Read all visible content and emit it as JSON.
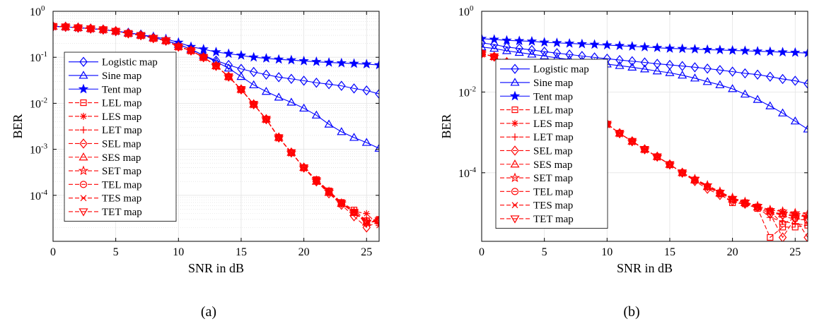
{
  "chart_data": [
    {
      "panel_label": "(a)",
      "type": "line",
      "xlabel": "SNR in dB",
      "ylabel": "BER",
      "y_scale": "log",
      "xlim": [
        0,
        26
      ],
      "ylim": [
        1e-05,
        1
      ],
      "x_ticks": [
        0,
        5,
        10,
        15,
        20,
        25
      ],
      "y_ticks": [
        {
          "value": 1,
          "base": "10",
          "exp": "0"
        },
        {
          "value": 0.1,
          "base": "10",
          "exp": "-1"
        },
        {
          "value": 0.01,
          "base": "10",
          "exp": "-2"
        },
        {
          "value": 0.001,
          "base": "10",
          "exp": "-3"
        },
        {
          "value": 0.0001,
          "base": "10",
          "exp": "-4"
        }
      ],
      "grid": true,
      "minor_grid": true,
      "legend_position": "center-left",
      "x": [
        0,
        1,
        2,
        3,
        4,
        5,
        6,
        7,
        8,
        9,
        10,
        11,
        12,
        13,
        14,
        15,
        16,
        17,
        18,
        19,
        20,
        21,
        22,
        23,
        24,
        25,
        26
      ],
      "series": [
        {
          "name": "Logistic map",
          "color": "#0000ff",
          "dash": "solid",
          "marker": "diamond",
          "values": [
            0.47,
            0.46,
            0.44,
            0.42,
            0.4,
            0.37,
            0.34,
            0.31,
            0.27,
            0.23,
            0.19,
            0.15,
            0.11,
            0.085,
            0.068,
            0.056,
            0.048,
            0.042,
            0.037,
            0.034,
            0.031,
            0.028,
            0.026,
            0.024,
            0.021,
            0.019,
            0.016
          ]
        },
        {
          "name": "Sine map",
          "color": "#0000ff",
          "dash": "solid",
          "marker": "triangle",
          "values": [
            0.47,
            0.46,
            0.44,
            0.42,
            0.4,
            0.37,
            0.34,
            0.31,
            0.27,
            0.23,
            0.19,
            0.15,
            0.11,
            0.08,
            0.058,
            0.038,
            0.025,
            0.018,
            0.0135,
            0.0105,
            0.0078,
            0.0055,
            0.0035,
            0.0024,
            0.0018,
            0.0014,
            0.00105
          ]
        },
        {
          "name": "Tent map",
          "color": "#0000ff",
          "dash": "solid",
          "marker": "star",
          "values": [
            0.47,
            0.46,
            0.44,
            0.42,
            0.4,
            0.37,
            0.34,
            0.31,
            0.28,
            0.25,
            0.21,
            0.17,
            0.15,
            0.13,
            0.12,
            0.11,
            0.1,
            0.095,
            0.09,
            0.087,
            0.083,
            0.08,
            0.077,
            0.075,
            0.073,
            0.071,
            0.068
          ]
        },
        {
          "name": "LEL map",
          "color": "#ff0000",
          "dash": "dashed",
          "marker": "square",
          "values": [
            0.47,
            0.46,
            0.44,
            0.42,
            0.4,
            0.37,
            0.33,
            0.3,
            0.26,
            0.23,
            0.17,
            0.14,
            0.1,
            0.065,
            0.038,
            0.02,
            0.0095,
            0.0045,
            0.0018,
            0.00085,
            0.0004,
            0.00022,
            0.000125,
            7e-05,
            4.8e-05,
            2.8e-05,
            3e-05
          ]
        },
        {
          "name": "LES map",
          "color": "#ff0000",
          "dash": "dashed",
          "marker": "asterisk",
          "values": [
            0.47,
            0.46,
            0.44,
            0.42,
            0.4,
            0.37,
            0.33,
            0.3,
            0.26,
            0.23,
            0.17,
            0.14,
            0.1,
            0.065,
            0.038,
            0.02,
            0.0095,
            0.0045,
            0.0018,
            0.00085,
            0.0004,
            0.00021,
            0.00012,
            6.8e-05,
            4.5e-05,
            4e-05,
            2.2e-05
          ]
        },
        {
          "name": "LET map",
          "color": "#ff0000",
          "dash": "dashed",
          "marker": "plus",
          "values": [
            0.47,
            0.46,
            0.44,
            0.42,
            0.4,
            0.37,
            0.33,
            0.3,
            0.26,
            0.23,
            0.17,
            0.14,
            0.1,
            0.065,
            0.038,
            0.02,
            0.0095,
            0.0045,
            0.0018,
            0.00085,
            0.0004,
            0.0002,
            0.000115,
            6.5e-05,
            4.4e-05,
            2.5e-05,
            2.9e-05
          ]
        },
        {
          "name": "SEL map",
          "color": "#ff0000",
          "dash": "dashed",
          "marker": "diamond",
          "values": [
            0.47,
            0.46,
            0.44,
            0.42,
            0.4,
            0.37,
            0.33,
            0.3,
            0.26,
            0.23,
            0.17,
            0.14,
            0.1,
            0.065,
            0.038,
            0.02,
            0.0095,
            0.0045,
            0.0018,
            0.00085,
            0.0004,
            0.0002,
            0.00011,
            6.2e-05,
            3.5e-05,
            2e-05,
            2.8e-05
          ]
        },
        {
          "name": "SES map",
          "color": "#ff0000",
          "dash": "dashed",
          "marker": "triangle",
          "values": [
            0.47,
            0.46,
            0.44,
            0.42,
            0.4,
            0.37,
            0.33,
            0.3,
            0.26,
            0.23,
            0.17,
            0.14,
            0.1,
            0.065,
            0.038,
            0.02,
            0.0095,
            0.0045,
            0.0018,
            0.00085,
            0.0004,
            0.0002,
            0.000115,
            6.6e-05,
            4.2e-05,
            2.6e-05,
            2.8e-05
          ]
        },
        {
          "name": "SET map",
          "color": "#ff0000",
          "dash": "dashed",
          "marker": "pentagram",
          "values": [
            0.47,
            0.46,
            0.44,
            0.42,
            0.4,
            0.37,
            0.33,
            0.3,
            0.26,
            0.23,
            0.17,
            0.14,
            0.1,
            0.065,
            0.038,
            0.02,
            0.0095,
            0.0045,
            0.0018,
            0.00085,
            0.0004,
            0.00021,
            0.00012,
            6.7e-05,
            4.3e-05,
            2.7e-05,
            2.8e-05
          ]
        },
        {
          "name": "TEL map",
          "color": "#ff0000",
          "dash": "dashed",
          "marker": "circle",
          "values": [
            0.47,
            0.46,
            0.44,
            0.42,
            0.4,
            0.37,
            0.33,
            0.3,
            0.26,
            0.23,
            0.17,
            0.14,
            0.1,
            0.065,
            0.038,
            0.02,
            0.0095,
            0.0045,
            0.0018,
            0.00085,
            0.0004,
            0.00021,
            0.00012,
            6.7e-05,
            4.2e-05,
            2.8e-05,
            2.9e-05
          ]
        },
        {
          "name": "TES map",
          "color": "#ff0000",
          "dash": "dashed",
          "marker": "x",
          "values": [
            0.47,
            0.46,
            0.44,
            0.42,
            0.4,
            0.37,
            0.33,
            0.3,
            0.26,
            0.23,
            0.17,
            0.14,
            0.1,
            0.065,
            0.038,
            0.02,
            0.0095,
            0.0045,
            0.0018,
            0.00085,
            0.0004,
            0.00021,
            0.00012,
            6.7e-05,
            4.3e-05,
            2.6e-05,
            2.7e-05
          ]
        },
        {
          "name": "TET map",
          "color": "#ff0000",
          "dash": "dashed",
          "marker": "triangle-down",
          "values": [
            0.47,
            0.46,
            0.44,
            0.42,
            0.4,
            0.37,
            0.33,
            0.3,
            0.26,
            0.23,
            0.17,
            0.14,
            0.1,
            0.065,
            0.038,
            0.02,
            0.0095,
            0.0045,
            0.0018,
            0.00085,
            0.0004,
            0.00021,
            0.00012,
            6.7e-05,
            4.3e-05,
            2.5e-05,
            2.8e-05
          ]
        }
      ]
    },
    {
      "panel_label": "(b)",
      "type": "line",
      "xlabel": "SNR in dB",
      "ylabel": "BER",
      "y_scale": "log",
      "xlim": [
        0,
        26
      ],
      "ylim": [
        2e-06,
        1
      ],
      "x_ticks": [
        0,
        5,
        10,
        15,
        20,
        25
      ],
      "y_ticks": [
        {
          "value": 1,
          "base": "10",
          "exp": "0"
        },
        {
          "value": 0.01,
          "base": "10",
          "exp": "-2"
        },
        {
          "value": 0.0001,
          "base": "10",
          "exp": "-4"
        }
      ],
      "grid": true,
      "minor_grid": false,
      "legend_position": "center-left",
      "x": [
        0,
        1,
        2,
        3,
        4,
        5,
        6,
        7,
        8,
        9,
        10,
        11,
        12,
        13,
        14,
        15,
        16,
        17,
        18,
        19,
        20,
        21,
        22,
        23,
        24,
        25,
        26
      ],
      "series": [
        {
          "name": "Logistic map",
          "color": "#0000ff",
          "dash": "solid",
          "marker": "diamond",
          "values": [
            0.165,
            0.15,
            0.13,
            0.12,
            0.11,
            0.1,
            0.092,
            0.085,
            0.078,
            0.072,
            0.067,
            0.062,
            0.058,
            0.054,
            0.05,
            0.047,
            0.044,
            0.041,
            0.038,
            0.035,
            0.032,
            0.029,
            0.027,
            0.024,
            0.021,
            0.019,
            0.016
          ]
        },
        {
          "name": "Sine map",
          "color": "#0000ff",
          "dash": "solid",
          "marker": "triangle",
          "values": [
            0.13,
            0.12,
            0.105,
            0.095,
            0.086,
            0.078,
            0.07,
            0.064,
            0.058,
            0.053,
            0.049,
            0.045,
            0.041,
            0.037,
            0.033,
            0.03,
            0.026,
            0.022,
            0.018,
            0.015,
            0.012,
            0.0088,
            0.0065,
            0.0045,
            0.003,
            0.0019,
            0.0012
          ]
        },
        {
          "name": "Tent map",
          "color": "#0000ff",
          "dash": "solid",
          "marker": "star",
          "values": [
            0.21,
            0.2,
            0.19,
            0.185,
            0.18,
            0.17,
            0.165,
            0.16,
            0.155,
            0.15,
            0.145,
            0.14,
            0.135,
            0.13,
            0.125,
            0.12,
            0.118,
            0.115,
            0.112,
            0.11,
            0.107,
            0.105,
            0.102,
            0.1,
            0.097,
            0.095,
            0.092
          ]
        },
        {
          "name": "LEL map",
          "color": "#ff0000",
          "dash": "dashed",
          "marker": "square",
          "values": [
            0.09,
            0.075,
            0.055,
            0.04,
            0.028,
            0.018,
            0.011,
            0.0068,
            0.0042,
            0.0026,
            0.0016,
            0.00095,
            0.0006,
            0.00038,
            0.00025,
            0.00016,
            0.0001,
            6.5e-05,
            4.5e-05,
            3e-05,
            1.8e-05,
            1.7e-05,
            1.3e-05,
            2.5e-06,
            4.5e-06,
            4.5e-06,
            5e-06
          ]
        },
        {
          "name": "LES map",
          "color": "#ff0000",
          "dash": "dashed",
          "marker": "asterisk",
          "values": [
            0.09,
            0.075,
            0.055,
            0.04,
            0.028,
            0.018,
            0.011,
            0.0068,
            0.0042,
            0.0026,
            0.0016,
            0.00095,
            0.0006,
            0.00038,
            0.00025,
            0.00016,
            0.0001,
            6.8e-05,
            4.7e-05,
            3.3e-05,
            2.3e-05,
            1.9e-05,
            1.5e-05,
            1.2e-05,
            1.1e-05,
            9.5e-06,
            8.5e-06
          ]
        },
        {
          "name": "LET map",
          "color": "#ff0000",
          "dash": "dashed",
          "marker": "plus",
          "values": [
            0.09,
            0.075,
            0.055,
            0.04,
            0.028,
            0.018,
            0.011,
            0.0068,
            0.0042,
            0.0026,
            0.0016,
            0.00095,
            0.0006,
            0.00038,
            0.00025,
            0.00016,
            0.0001,
            6.6e-05,
            4.6e-05,
            3.2e-05,
            2.2e-05,
            1.8e-05,
            1.4e-05,
            7.8e-06,
            6.2e-06,
            5.5e-06,
            5e-06
          ]
        },
        {
          "name": "SEL map",
          "color": "#ff0000",
          "dash": "dashed",
          "marker": "diamond",
          "values": [
            0.09,
            0.075,
            0.055,
            0.04,
            0.028,
            0.018,
            0.011,
            0.0068,
            0.0042,
            0.0026,
            0.0016,
            0.00095,
            0.0006,
            0.00038,
            0.00025,
            0.00016,
            0.0001,
            6.2e-05,
            4e-05,
            2.8e-05,
            2e-05,
            1.7e-05,
            1.4e-05,
            9.5e-06,
            2.5e-06,
            7.5e-06,
            2.5e-06
          ]
        },
        {
          "name": "SES map",
          "color": "#ff0000",
          "dash": "dashed",
          "marker": "triangle",
          "values": [
            0.09,
            0.075,
            0.055,
            0.04,
            0.028,
            0.018,
            0.011,
            0.0068,
            0.0042,
            0.0026,
            0.0016,
            0.00095,
            0.0006,
            0.00038,
            0.00025,
            0.00016,
            0.0001,
            6.6e-05,
            4.5e-05,
            3.1e-05,
            2.2e-05,
            1.8e-05,
            1.4e-05,
            1.1e-05,
            9.5e-06,
            9e-06,
            8.5e-06
          ]
        },
        {
          "name": "SET map",
          "color": "#ff0000",
          "dash": "dashed",
          "marker": "pentagram",
          "values": [
            0.09,
            0.075,
            0.055,
            0.04,
            0.028,
            0.018,
            0.011,
            0.0068,
            0.0042,
            0.0026,
            0.0016,
            0.00095,
            0.0006,
            0.00038,
            0.00025,
            0.00016,
            0.0001,
            7e-05,
            4.9e-05,
            3.4e-05,
            2.4e-05,
            1.9e-05,
            1.5e-05,
            1.2e-05,
            1.1e-05,
            1e-05,
            9.5e-06
          ]
        },
        {
          "name": "TEL map",
          "color": "#ff0000",
          "dash": "dashed",
          "marker": "circle",
          "values": [
            0.09,
            0.075,
            0.055,
            0.04,
            0.028,
            0.018,
            0.011,
            0.0068,
            0.0042,
            0.0026,
            0.0016,
            0.00095,
            0.0006,
            0.00038,
            0.00025,
            0.00016,
            0.0001,
            6.7e-05,
            4.6e-05,
            3.2e-05,
            2.2e-05,
            1.8e-05,
            1.4e-05,
            1.1e-05,
            5.5e-06,
            7.5e-06,
            6.5e-06
          ]
        },
        {
          "name": "TES map",
          "color": "#ff0000",
          "dash": "dashed",
          "marker": "x",
          "values": [
            0.09,
            0.075,
            0.055,
            0.04,
            0.028,
            0.018,
            0.011,
            0.0068,
            0.0042,
            0.0026,
            0.0016,
            0.00095,
            0.0006,
            0.00038,
            0.00025,
            0.00016,
            0.0001,
            6.7e-05,
            4.6e-05,
            3.2e-05,
            2.2e-05,
            1.8e-05,
            1.4e-05,
            1.1e-05,
            9e-06,
            8.5e-06,
            8.2e-06
          ]
        },
        {
          "name": "TET map",
          "color": "#ff0000",
          "dash": "dashed",
          "marker": "triangle-down",
          "values": [
            0.09,
            0.075,
            0.055,
            0.04,
            0.028,
            0.018,
            0.011,
            0.0068,
            0.0042,
            0.0026,
            0.0016,
            0.00095,
            0.0006,
            0.00038,
            0.00025,
            0.00016,
            0.0001,
            6.6e-05,
            4.5e-05,
            3.1e-05,
            2.2e-05,
            1.8e-05,
            1.4e-05,
            1.1e-05,
            8.5e-06,
            7e-06,
            6.8e-06
          ]
        }
      ]
    }
  ]
}
